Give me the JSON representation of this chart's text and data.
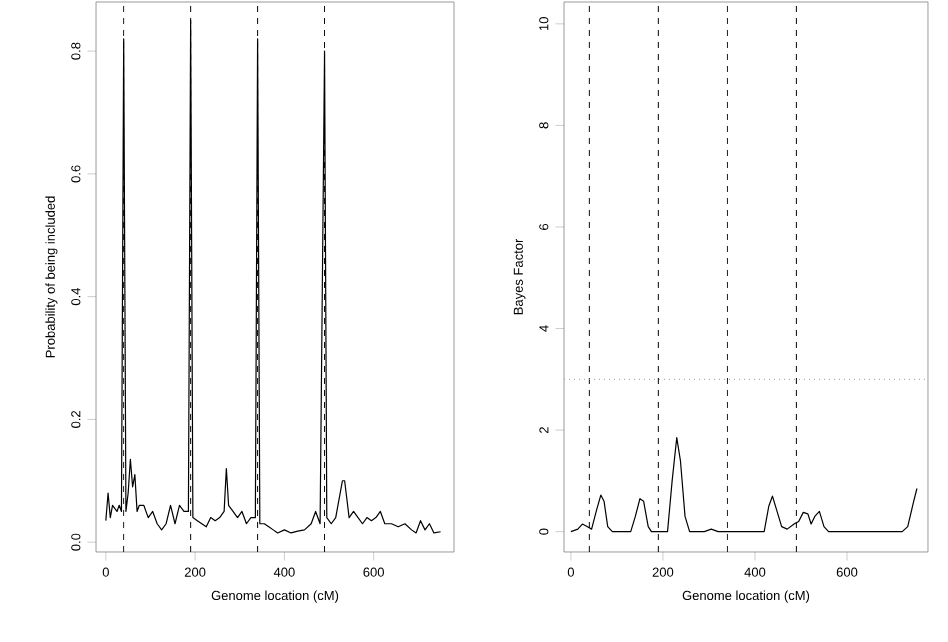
{
  "chart_data": [
    {
      "type": "line",
      "xlabel": "Genome location (cM)",
      "ylabel": "Probability of being included",
      "xlim": [
        -22,
        780
      ],
      "ylim": [
        -0.016,
        0.88
      ],
      "xticks": [
        0,
        200,
        400,
        600
      ],
      "yticks": [
        {
          "value": 0,
          "label": "0.0"
        },
        0.2,
        0.4,
        0.6,
        0.8
      ],
      "series": [
        {
          "color": "#000000",
          "x": [
            0,
            5,
            10,
            15,
            25,
            30,
            35,
            40,
            45,
            50,
            55,
            60,
            65,
            70,
            75,
            85,
            95,
            105,
            115,
            125,
            135,
            145,
            155,
            165,
            175,
            185,
            190,
            195,
            205,
            215,
            225,
            235,
            245,
            255,
            265,
            270,
            275,
            285,
            295,
            305,
            315,
            325,
            335,
            340,
            345,
            355,
            365,
            375,
            385,
            400,
            415,
            430,
            445,
            460,
            470,
            480,
            490,
            495,
            505,
            515,
            530,
            535,
            545,
            555,
            565,
            575,
            585,
            595,
            605,
            615,
            625,
            640,
            655,
            670,
            685,
            695,
            705,
            715,
            725,
            735,
            750
          ],
          "values": [
            0.035,
            0.08,
            0.04,
            0.06,
            0.05,
            0.06,
            0.05,
            0.82,
            0.05,
            0.08,
            0.135,
            0.09,
            0.11,
            0.05,
            0.06,
            0.06,
            0.04,
            0.05,
            0.03,
            0.02,
            0.03,
            0.06,
            0.03,
            0.06,
            0.05,
            0.05,
            0.85,
            0.04,
            0.035,
            0.03,
            0.025,
            0.04,
            0.035,
            0.04,
            0.05,
            0.12,
            0.06,
            0.05,
            0.04,
            0.05,
            0.03,
            0.04,
            0.04,
            0.82,
            0.03,
            0.03,
            0.025,
            0.02,
            0.015,
            0.02,
            0.015,
            0.018,
            0.02,
            0.03,
            0.05,
            0.03,
            0.8,
            0.04,
            0.03,
            0.04,
            0.1,
            0.1,
            0.04,
            0.05,
            0.04,
            0.03,
            0.04,
            0.035,
            0.04,
            0.05,
            0.03,
            0.03,
            0.025,
            0.03,
            0.02,
            0.015,
            0.035,
            0.02,
            0.03,
            0.015,
            0.017
          ]
        }
      ],
      "ref_lines": [
        {
          "axis": "x",
          "value": 40,
          "line_style": "dashed",
          "color": "#000000"
        },
        {
          "axis": "x",
          "value": 190,
          "line_style": "dashed",
          "color": "#000000"
        },
        {
          "axis": "x",
          "value": 340,
          "line_style": "dashed",
          "color": "#000000"
        },
        {
          "axis": "x",
          "value": 490,
          "line_style": "dashed",
          "color": "#000000"
        }
      ]
    },
    {
      "type": "line",
      "xlabel": "Genome location (cM)",
      "ylabel": "Bayes Factor",
      "xlim": [
        -15,
        776
      ],
      "ylim": [
        -0.4,
        10.43
      ],
      "xticks": [
        0,
        200,
        400,
        600
      ],
      "yticks": [
        0,
        2,
        4,
        6,
        8,
        10
      ],
      "series": [
        {
          "color": "#000000",
          "x": [
            0,
            15,
            25,
            35,
            45,
            55,
            65,
            72,
            80,
            90,
            130,
            140,
            150,
            158,
            168,
            175,
            210,
            220,
            230,
            238,
            248,
            258,
            290,
            305,
            320,
            420,
            430,
            438,
            448,
            458,
            470,
            485,
            495,
            505,
            515,
            522,
            530,
            540,
            550,
            560,
            720,
            732,
            745,
            752
          ],
          "values": [
            0,
            0.05,
            0.15,
            0.1,
            0.05,
            0.4,
            0.72,
            0.6,
            0.1,
            0,
            0,
            0.3,
            0.65,
            0.6,
            0.1,
            0,
            0,
            1.0,
            1.85,
            1.4,
            0.3,
            0,
            0,
            0.05,
            0,
            0,
            0.5,
            0.7,
            0.4,
            0.1,
            0.05,
            0.15,
            0.2,
            0.38,
            0.35,
            0.15,
            0.3,
            0.4,
            0.1,
            0,
            0,
            0.1,
            0.6,
            0.85
          ]
        }
      ],
      "ref_lines": [
        {
          "axis": "x",
          "value": 40,
          "line_style": "dashed",
          "color": "#000000"
        },
        {
          "axis": "x",
          "value": 190,
          "line_style": "dashed",
          "color": "#000000"
        },
        {
          "axis": "x",
          "value": 340,
          "line_style": "dashed",
          "color": "#000000"
        },
        {
          "axis": "x",
          "value": 490,
          "line_style": "dashed",
          "color": "#000000"
        },
        {
          "axis": "y",
          "value": 3,
          "line_style": "dotted",
          "color": "#999999"
        }
      ]
    }
  ]
}
